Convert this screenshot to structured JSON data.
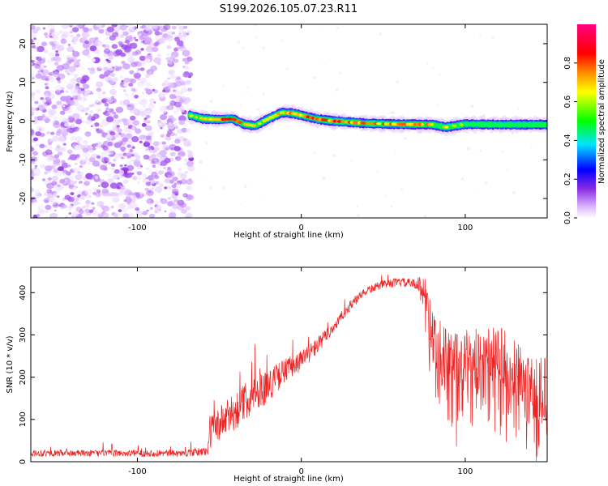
{
  "title": "S199.2026.105.07.23.R11",
  "chart_data": [
    {
      "type": "heatmap",
      "xlabel": "Height of straight line (km)",
      "ylabel": "Frequency (Hz)",
      "xlim": [
        -165,
        150
      ],
      "ylim": [
        -25,
        25
      ],
      "xticks": [
        -100,
        0,
        100
      ],
      "yticks": [
        -20,
        -10,
        0,
        10,
        20
      ],
      "colorbar": {
        "label": "Normalized spectral amplitude",
        "range": [
          0,
          1
        ],
        "ticks": [
          "0.0",
          "0.2",
          "0.4",
          "0.6",
          "0.8"
        ],
        "tick_values": [
          0,
          0.2,
          0.4,
          0.6,
          0.8
        ],
        "colors": [
          "#ffffff",
          "#cc99ff",
          "#8a2be2",
          "#0000ff",
          "#00e5ff",
          "#00ff00",
          "#ffff00",
          "#ff8c00",
          "#ff0000",
          "#ff007f"
        ]
      },
      "noise_region": {
        "x_from": -165,
        "x_to": -68,
        "level": 0.15
      },
      "ridge": {
        "x": [
          -68,
          -60,
          -50,
          -42,
          -35,
          -28,
          -20,
          -12,
          -5,
          0,
          10,
          20,
          40,
          60,
          80,
          88,
          100,
          120,
          150
        ],
        "freq": [
          1.5,
          0.6,
          0.4,
          0.6,
          -0.8,
          -1.2,
          0.6,
          2.2,
          2.0,
          1.5,
          0.5,
          0.0,
          -0.6,
          -0.8,
          -0.9,
          -1.6,
          -0.8,
          -0.9,
          -0.9
        ],
        "amp": [
          0.6,
          0.8,
          0.85,
          0.85,
          0.8,
          0.7,
          0.7,
          0.75,
          0.85,
          0.85,
          0.9,
          0.9,
          0.8,
          0.85,
          0.75,
          0.7,
          0.6,
          0.65,
          0.55
        ]
      }
    },
    {
      "type": "line",
      "xlabel": "Height of straight line (km)",
      "ylabel": "SNR (10 * v/v)",
      "xlim": [
        -165,
        150
      ],
      "ylim": [
        0,
        460
      ],
      "xticks": [
        -100,
        0,
        100
      ],
      "yticks": [
        0,
        100,
        200,
        300,
        400
      ],
      "color": "#ee2222",
      "series": [
        {
          "name": "SNR",
          "envelope_x": [
            -165,
            -120,
            -70,
            -57,
            -56,
            -40,
            -30,
            -20,
            -10,
            0,
            10,
            20,
            30,
            40,
            50,
            60,
            70,
            77,
            80,
            90,
            100,
            110,
            120,
            130,
            140,
            150
          ],
          "envelope_y": [
            20,
            20,
            20,
            25,
            70,
            120,
            160,
            180,
            215,
            240,
            275,
            320,
            370,
            405,
            420,
            425,
            420,
            400,
            290,
            240,
            250,
            250,
            260,
            220,
            180,
            170
          ],
          "noise_amp": [
            8,
            8,
            8,
            12,
            40,
            45,
            45,
            40,
            30,
            25,
            20,
            15,
            12,
            10,
            10,
            10,
            12,
            60,
            110,
            120,
            110,
            110,
            110,
            120,
            130,
            130
          ]
        }
      ]
    }
  ]
}
